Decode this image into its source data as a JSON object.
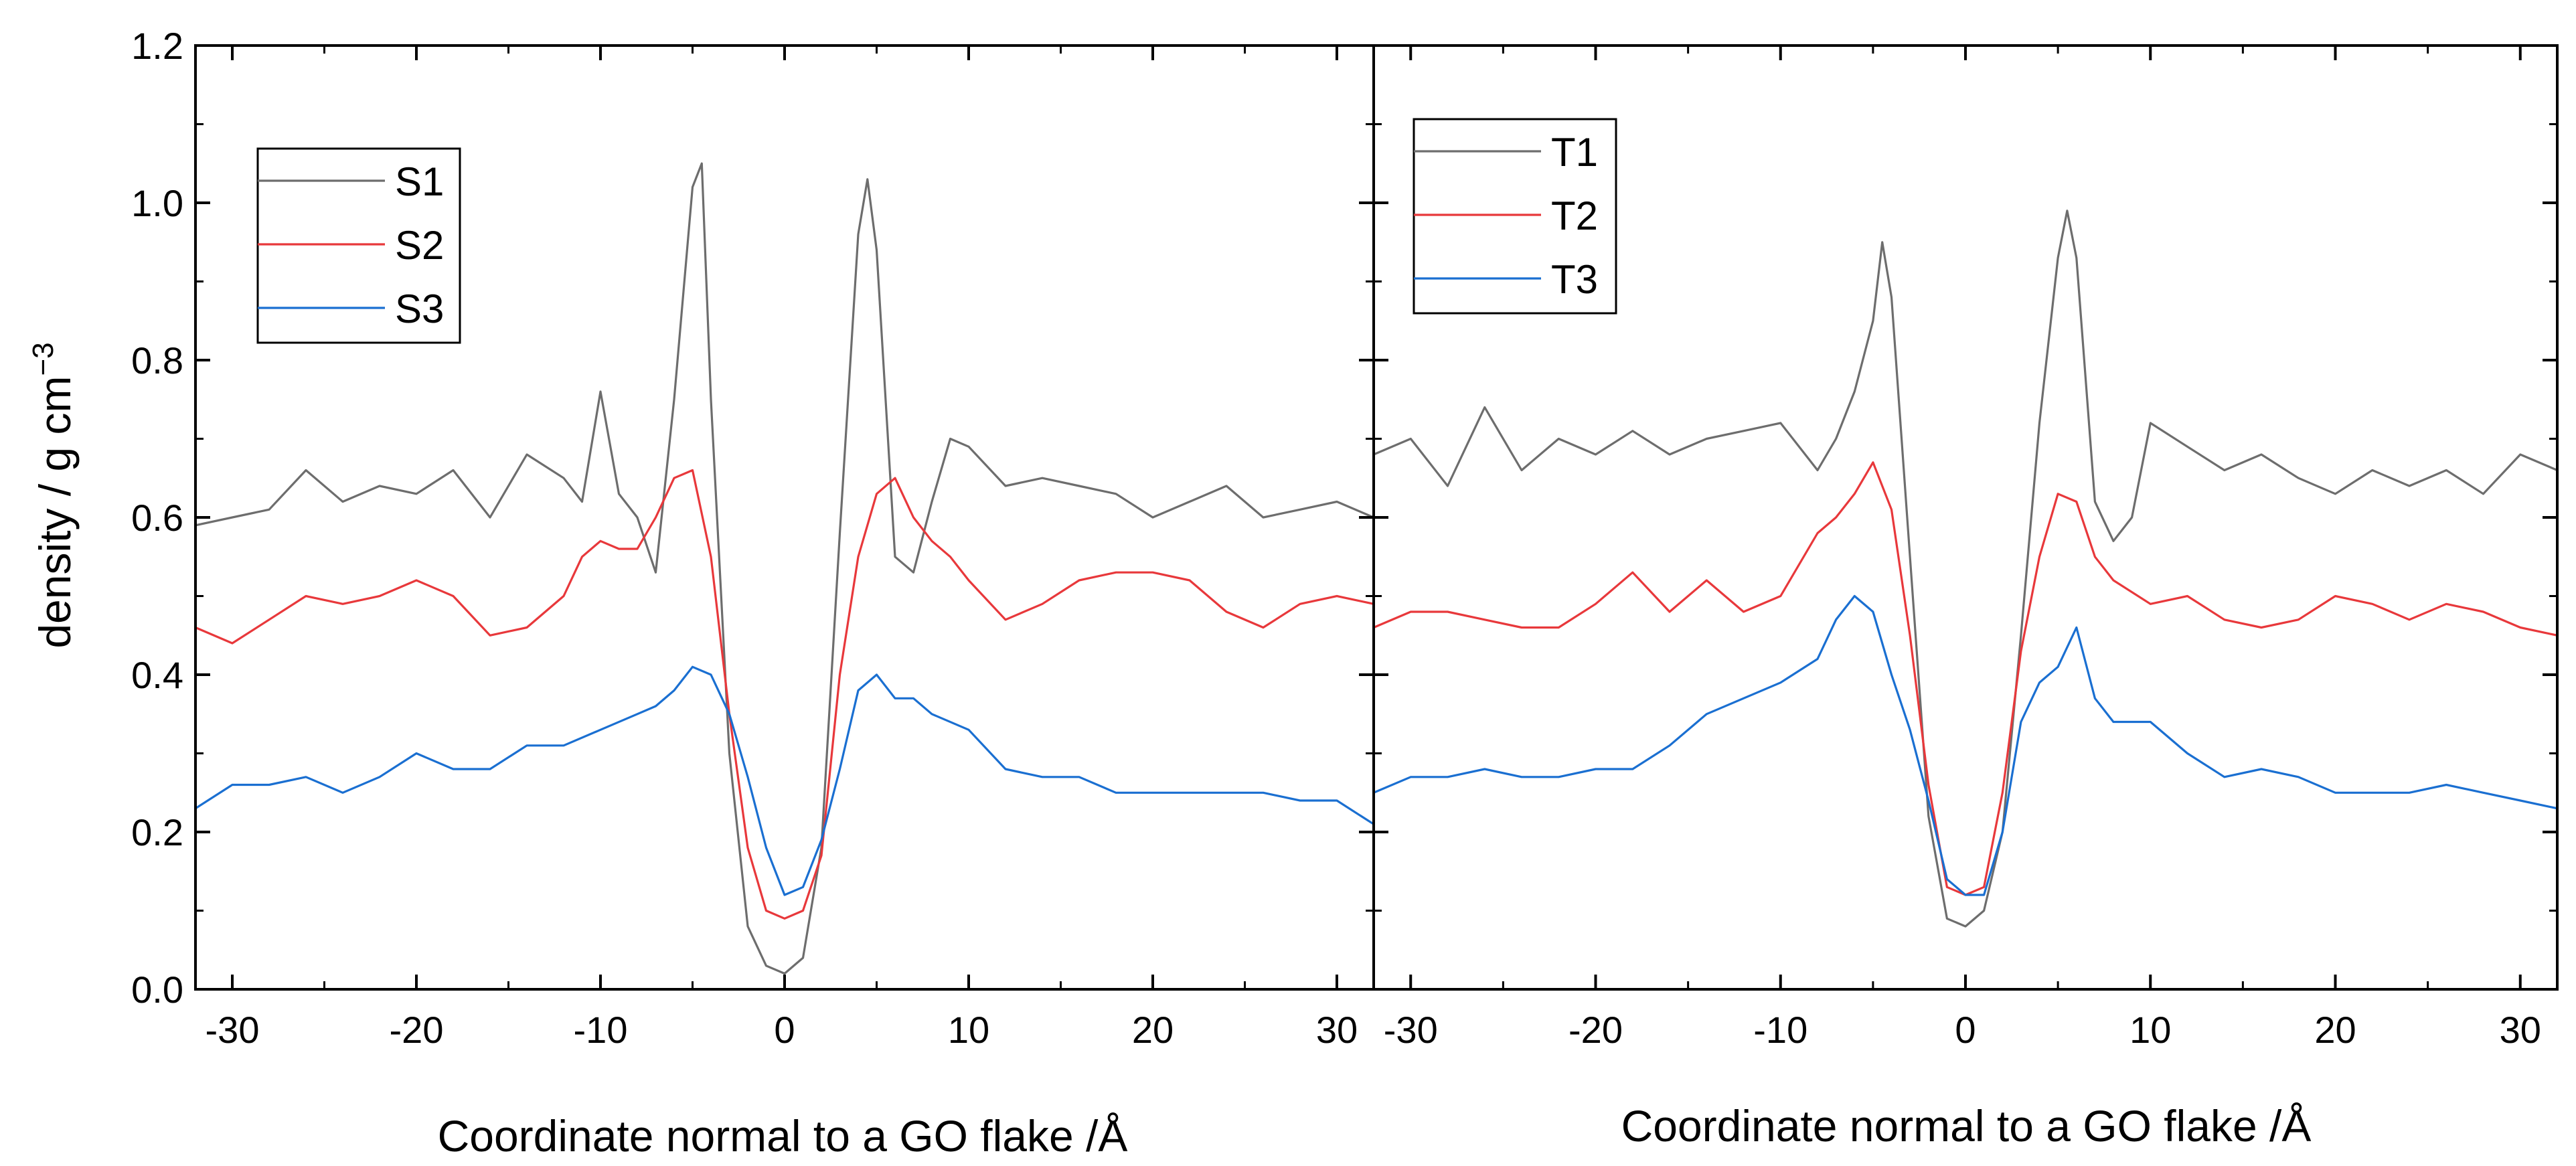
{
  "figure": {
    "ylabel_main": "density / g cm",
    "ylabel_sup": "−3"
  },
  "chart_data": [
    {
      "type": "line",
      "id": "S",
      "xlabel": "Coordinate normal to a GO flake /Å",
      "ylabel": "density / g cm−3",
      "xlim": [
        -32,
        32
      ],
      "ylim": [
        0,
        1.2
      ],
      "xticks": [
        -30,
        -20,
        -10,
        0,
        10,
        20,
        30
      ],
      "xtick_labels": [
        "-30",
        "-20",
        "-10",
        "0",
        "10",
        "20",
        "30"
      ],
      "yticks": [
        0,
        0.2,
        0.4,
        0.6,
        0.8,
        1.0,
        1.2
      ],
      "ytick_labels": [
        "0.0",
        "0.2",
        "0.4",
        "0.6",
        "0.8",
        "1.0",
        "1.2"
      ],
      "legend_position": "top-left",
      "series": [
        {
          "name": "S1",
          "color": "#6d6d6d",
          "x": [
            -32,
            -30,
            -28,
            -26,
            -24,
            -22,
            -20,
            -18,
            -16,
            -14,
            -12,
            -11,
            -10,
            -9,
            -8,
            -7,
            -6,
            -5,
            -4.5,
            -4,
            -3,
            -2,
            -1,
            0,
            1,
            2,
            3,
            4,
            4.5,
            5,
            6,
            7,
            8,
            9,
            10,
            12,
            14,
            16,
            18,
            20,
            22,
            24,
            26,
            28,
            30,
            32
          ],
          "values": [
            0.59,
            0.6,
            0.61,
            0.66,
            0.62,
            0.64,
            0.63,
            0.66,
            0.6,
            0.68,
            0.65,
            0.62,
            0.76,
            0.63,
            0.6,
            0.53,
            0.75,
            1.02,
            1.05,
            0.75,
            0.3,
            0.08,
            0.03,
            0.02,
            0.04,
            0.18,
            0.58,
            0.96,
            1.03,
            0.94,
            0.55,
            0.53,
            0.62,
            0.7,
            0.69,
            0.64,
            0.65,
            0.64,
            0.63,
            0.6,
            0.62,
            0.64,
            0.6,
            0.61,
            0.62,
            0.6
          ]
        },
        {
          "name": "S2",
          "color": "#e8383b",
          "x": [
            -32,
            -30,
            -28,
            -26,
            -24,
            -22,
            -20,
            -18,
            -16,
            -14,
            -12,
            -11,
            -10,
            -9,
            -8,
            -7,
            -6,
            -5,
            -4,
            -3,
            -2,
            -1,
            0,
            1,
            2,
            3,
            4,
            5,
            6,
            7,
            8,
            9,
            10,
            12,
            14,
            16,
            18,
            20,
            22,
            24,
            26,
            28,
            30,
            32
          ],
          "values": [
            0.46,
            0.44,
            0.47,
            0.5,
            0.49,
            0.5,
            0.52,
            0.5,
            0.45,
            0.46,
            0.5,
            0.55,
            0.57,
            0.56,
            0.56,
            0.6,
            0.65,
            0.66,
            0.55,
            0.35,
            0.18,
            0.1,
            0.09,
            0.1,
            0.17,
            0.4,
            0.55,
            0.63,
            0.65,
            0.6,
            0.57,
            0.55,
            0.52,
            0.47,
            0.49,
            0.52,
            0.53,
            0.53,
            0.52,
            0.48,
            0.46,
            0.49,
            0.5,
            0.49
          ]
        },
        {
          "name": "S3",
          "color": "#1a6fd1",
          "x": [
            -32,
            -30,
            -28,
            -26,
            -24,
            -22,
            -20,
            -18,
            -16,
            -14,
            -12,
            -10,
            -8,
            -7,
            -6,
            -5,
            -4,
            -3,
            -2,
            -1,
            0,
            1,
            2,
            3,
            4,
            5,
            6,
            7,
            8,
            10,
            12,
            14,
            16,
            18,
            20,
            22,
            24,
            26,
            28,
            30,
            32
          ],
          "values": [
            0.23,
            0.26,
            0.26,
            0.27,
            0.25,
            0.27,
            0.3,
            0.28,
            0.28,
            0.31,
            0.31,
            0.33,
            0.35,
            0.36,
            0.38,
            0.41,
            0.4,
            0.35,
            0.27,
            0.18,
            0.12,
            0.13,
            0.19,
            0.28,
            0.38,
            0.4,
            0.37,
            0.37,
            0.35,
            0.33,
            0.28,
            0.27,
            0.27,
            0.25,
            0.25,
            0.25,
            0.25,
            0.25,
            0.24,
            0.24,
            0.21
          ]
        }
      ]
    },
    {
      "type": "line",
      "id": "T",
      "xlabel": "Coordinate normal to a GO flake /Å",
      "xlim": [
        -32,
        32
      ],
      "ylim": [
        0,
        1.2
      ],
      "xticks": [
        -30,
        -20,
        -10,
        0,
        10,
        20,
        30
      ],
      "xtick_labels": [
        "-30",
        "-20",
        "-10",
        "0",
        "10",
        "20",
        "30"
      ],
      "legend_position": "top-left",
      "series": [
        {
          "name": "T1",
          "color": "#6d6d6d",
          "x": [
            -32,
            -30,
            -28,
            -26,
            -24,
            -22,
            -20,
            -18,
            -16,
            -14,
            -12,
            -10,
            -8,
            -7,
            -6,
            -5,
            -4.5,
            -4,
            -3,
            -2,
            -1,
            0,
            1,
            2,
            3,
            4,
            5,
            5.5,
            6,
            7,
            8,
            9,
            10,
            12,
            14,
            16,
            18,
            20,
            22,
            24,
            26,
            28,
            30,
            32
          ],
          "values": [
            0.68,
            0.7,
            0.64,
            0.74,
            0.66,
            0.7,
            0.68,
            0.71,
            0.68,
            0.7,
            0.71,
            0.72,
            0.66,
            0.7,
            0.76,
            0.85,
            0.95,
            0.88,
            0.55,
            0.22,
            0.09,
            0.08,
            0.1,
            0.2,
            0.45,
            0.72,
            0.93,
            0.99,
            0.93,
            0.62,
            0.57,
            0.6,
            0.72,
            0.69,
            0.66,
            0.68,
            0.65,
            0.63,
            0.66,
            0.64,
            0.66,
            0.63,
            0.68,
            0.66
          ]
        },
        {
          "name": "T2",
          "color": "#e8383b",
          "x": [
            -32,
            -30,
            -28,
            -26,
            -24,
            -22,
            -20,
            -18,
            -16,
            -14,
            -12,
            -10,
            -8,
            -7,
            -6,
            -5,
            -4,
            -3,
            -2,
            -1,
            0,
            1,
            2,
            3,
            4,
            5,
            6,
            7,
            8,
            10,
            12,
            14,
            16,
            18,
            20,
            22,
            24,
            26,
            28,
            30,
            32
          ],
          "values": [
            0.46,
            0.48,
            0.48,
            0.47,
            0.46,
            0.46,
            0.49,
            0.53,
            0.48,
            0.52,
            0.48,
            0.5,
            0.58,
            0.6,
            0.63,
            0.67,
            0.61,
            0.45,
            0.26,
            0.13,
            0.12,
            0.13,
            0.25,
            0.43,
            0.55,
            0.63,
            0.62,
            0.55,
            0.52,
            0.49,
            0.5,
            0.47,
            0.46,
            0.47,
            0.5,
            0.49,
            0.47,
            0.49,
            0.48,
            0.46,
            0.45
          ]
        },
        {
          "name": "T3",
          "color": "#1a6fd1",
          "x": [
            -32,
            -30,
            -28,
            -26,
            -24,
            -22,
            -20,
            -18,
            -16,
            -14,
            -12,
            -10,
            -8,
            -7,
            -6,
            -5,
            -4,
            -3,
            -2,
            -1,
            0,
            1,
            2,
            3,
            4,
            5,
            6,
            7,
            8,
            10,
            12,
            14,
            16,
            18,
            20,
            22,
            24,
            26,
            28,
            30,
            32
          ],
          "values": [
            0.25,
            0.27,
            0.27,
            0.28,
            0.27,
            0.27,
            0.28,
            0.28,
            0.31,
            0.35,
            0.37,
            0.39,
            0.42,
            0.47,
            0.5,
            0.48,
            0.4,
            0.33,
            0.24,
            0.14,
            0.12,
            0.12,
            0.2,
            0.34,
            0.39,
            0.41,
            0.46,
            0.37,
            0.34,
            0.34,
            0.3,
            0.27,
            0.28,
            0.27,
            0.25,
            0.25,
            0.25,
            0.26,
            0.25,
            0.24,
            0.23
          ]
        }
      ]
    }
  ]
}
